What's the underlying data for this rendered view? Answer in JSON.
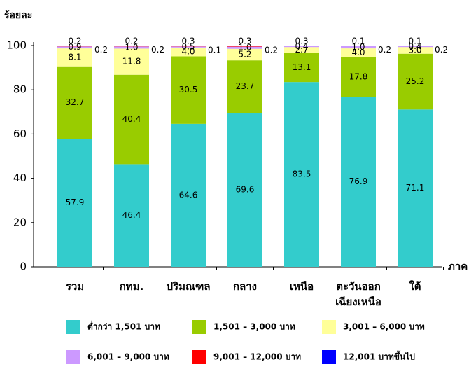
{
  "chart_data": {
    "type": "stacked_bar",
    "y_label": "ร้อยละ",
    "x_label": "ภาค",
    "categories": [
      "รวม",
      "กทม.",
      "ปริมณฑล",
      "กลาง",
      "เหนือ",
      "ตะวันออก เฉียงเหนือ",
      "ใต้"
    ],
    "ylim": [
      0,
      100
    ],
    "yticks": [
      0,
      20,
      40,
      60,
      80,
      100
    ],
    "series": [
      {
        "name": "ต่ำกว่า 1,501 บาท",
        "color": "#33cccc",
        "values": [
          57.9,
          46.4,
          64.6,
          69.6,
          83.5,
          76.9,
          71.1
        ],
        "value_labels": [
          "57.9",
          "46.4",
          "64.6",
          "69.6",
          "83.5",
          "76.9",
          "71.1"
        ]
      },
      {
        "name": "1,501 – 3,000 บาท",
        "color": "#99cc00",
        "values": [
          32.7,
          40.4,
          30.5,
          23.7,
          13.1,
          17.8,
          25.2
        ],
        "value_labels": [
          "32.7",
          "40.4",
          "30.5",
          "23.7",
          "13.1",
          "17.8",
          "25.2"
        ]
      },
      {
        "name": "3,001 – 6,000 บาท",
        "color": "#ffff99",
        "values": [
          8.1,
          11.8,
          4.0,
          5.2,
          2.7,
          4.0,
          3.0
        ],
        "value_labels": [
          "8.1",
          "11.8",
          "4.0",
          "5.2",
          "2.7",
          "4.0",
          "3.0"
        ]
      },
      {
        "name": "6,001 – 9,000 บาท",
        "color": "#cc99ff",
        "values": [
          0.9,
          1.0,
          0.5,
          1.0,
          0.4,
          1.0,
          0.4
        ],
        "value_labels": [
          "0.9",
          "1.0",
          "0.5",
          "1.0",
          "0.4",
          "1.0",
          "0.4"
        ]
      },
      {
        "name": "9,001 – 12,000 บาท",
        "color": "#ff0000",
        "values": [
          0.2,
          0.2,
          0.1,
          0.2,
          0.3,
          0.2,
          0.2
        ],
        "value_labels": [
          "0.2",
          "0.2",
          "0.1",
          "0.2",
          "0.3",
          "0.2",
          "0.2"
        ]
      },
      {
        "name": "12,001 บาทขึ้นไป",
        "color": "#0000ff",
        "values": [
          0.2,
          0.2,
          0.3,
          0.3,
          null,
          0.1,
          0.1
        ],
        "value_labels": [
          "0.2",
          "0.2",
          "0.3",
          "0.3",
          null,
          "0.1",
          "0.1"
        ]
      }
    ]
  }
}
